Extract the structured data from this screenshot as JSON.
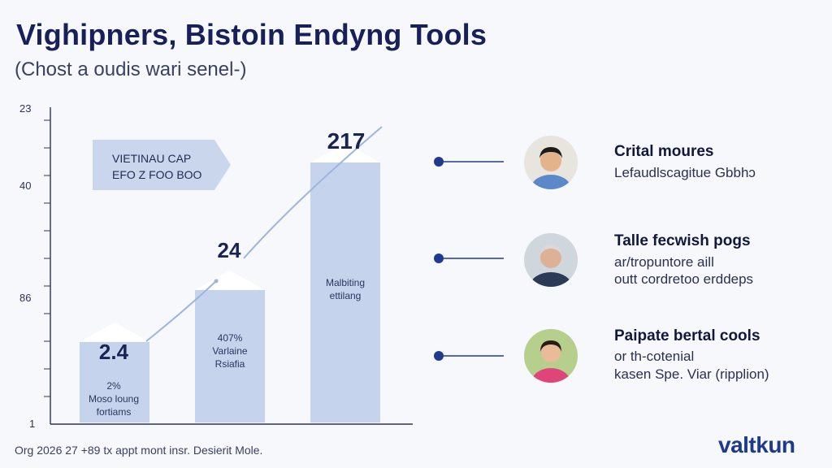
{
  "header": {
    "title": "Vighipners,  Bistoin Endyng Tools",
    "subtitle": "(Chost a oudis wari senel-)"
  },
  "chart_data": {
    "type": "bar",
    "y_ticks": [
      "23",
      "40",
      "86",
      "1"
    ],
    "categories": [
      "",
      "",
      ""
    ],
    "values": [
      2.4,
      24,
      217
    ],
    "value_labels": [
      "2.4",
      "24",
      "217"
    ],
    "bar_notes": [
      [
        "2%",
        "Moso loung",
        "fortiams"
      ],
      [
        "407%",
        "Varlaine",
        "Rsiafia"
      ],
      [
        "Malbiting",
        "ettilang"
      ]
    ],
    "callout": [
      "VIETINAU CAP",
      "EFO Z FOO BOO"
    ],
    "grid": true
  },
  "items": [
    {
      "title": "Crital moures",
      "lines": [
        "Lefaudlscagitue Gbbhɔ"
      ]
    },
    {
      "title": "Talle fecwish pogs",
      "lines": [
        "ar/tropuntore aill",
        "outt cordretoo erddeps"
      ]
    },
    {
      "title": "Paipate bertal cools",
      "lines": [
        "or th-cotenial",
        "kasen Spe. Viar (ripplion)"
      ]
    }
  ],
  "footer": {
    "text": "Org 2026 27 +89 tx appt mont insr. Desierit Mole."
  },
  "brand": {
    "logo": "valtkun"
  },
  "colors": {
    "bar": "#c5d4ec",
    "bar_top": "#dfe7f5",
    "axis": "#2c3356",
    "accent": "#1f3a8f",
    "trend": "#9fb4dc"
  }
}
